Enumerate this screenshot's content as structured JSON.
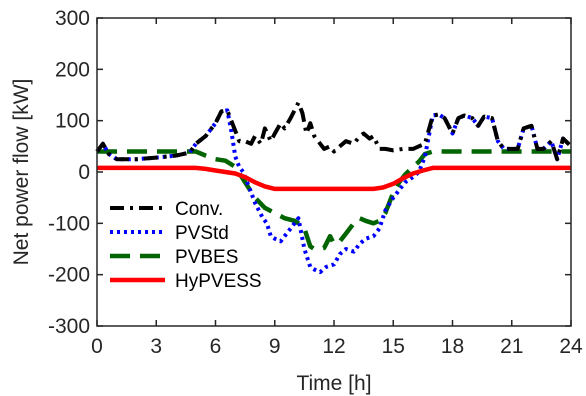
{
  "chart_data": {
    "type": "line",
    "title": "",
    "xlabel": "Time [h]",
    "ylabel": "Net power flow [kW]",
    "xlim": [
      0,
      24
    ],
    "ylim": [
      -300,
      300
    ],
    "x_ticks": [
      0,
      3,
      6,
      9,
      12,
      15,
      18,
      21,
      24
    ],
    "y_ticks": [
      -300,
      -200,
      -100,
      0,
      100,
      200,
      300
    ],
    "grid": false,
    "legend_position": "lower-left",
    "series": [
      {
        "name": "Conv.",
        "color": "#000000",
        "dash": "dash-dot",
        "x": [
          0,
          0.3,
          0.6,
          1,
          2,
          3,
          4,
          4.7,
          5,
          5.5,
          6,
          6.3,
          6.6,
          6.8,
          7,
          7.2,
          7.5,
          7.8,
          8,
          8.3,
          8.5,
          8.8,
          9,
          9.3,
          9.5,
          9.8,
          10,
          10.2,
          10.4,
          10.6,
          10.8,
          11,
          11.2,
          11.5,
          11.8,
          12,
          12.3,
          12.6,
          13,
          13.3,
          13.5,
          13.8,
          14,
          14.3,
          14.6,
          15,
          15.5,
          16,
          16.3,
          16.6,
          17,
          17.3,
          17.6,
          18,
          18.3,
          18.6,
          19,
          19.3,
          19.6,
          20,
          20.3,
          20.6,
          21,
          21.3,
          21.6,
          22,
          22.3,
          22.6,
          23,
          23.3,
          23.6,
          24
        ],
        "y": [
          40,
          55,
          35,
          25,
          25,
          28,
          32,
          38,
          55,
          70,
          95,
          118,
          120,
          100,
          80,
          60,
          60,
          55,
          70,
          55,
          85,
          60,
          75,
          95,
          85,
          105,
          120,
          135,
          115,
          75,
          95,
          70,
          60,
          45,
          50,
          40,
          50,
          60,
          55,
          70,
          75,
          65,
          70,
          45,
          45,
          42,
          45,
          45,
          50,
          55,
          110,
          112,
          105,
          75,
          105,
          110,
          105,
          90,
          108,
          105,
          60,
          45,
          45,
          45,
          85,
          90,
          45,
          45,
          60,
          25,
          65,
          50
        ]
      },
      {
        "name": "PVStd",
        "color": "#0000ff",
        "dash": "dotted",
        "x": [
          0,
          0.3,
          0.6,
          1,
          2,
          3,
          4,
          4.7,
          5,
          5.5,
          6,
          6.3,
          6.6,
          6.8,
          7,
          7.2,
          7.4,
          7.6,
          7.8,
          8,
          8.2,
          8.4,
          8.6,
          8.8,
          9,
          9.3,
          9.6,
          9.8,
          10,
          10.2,
          10.5,
          10.8,
          11,
          11.3,
          11.6,
          12,
          12.3,
          12.6,
          13,
          13.3,
          13.6,
          14,
          14.3,
          14.6,
          15,
          15.3,
          15.6,
          16,
          16.3,
          16.6,
          17,
          17.3,
          17.6,
          18,
          18.3,
          18.6,
          19,
          19.3,
          19.6,
          20,
          20.3,
          20.6,
          21,
          21.3,
          21.6,
          22,
          22.3,
          22.6,
          23,
          23.3,
          23.6,
          24
        ],
        "y": [
          40,
          55,
          35,
          25,
          25,
          28,
          32,
          38,
          55,
          70,
          95,
          118,
          120,
          80,
          30,
          10,
          0,
          -20,
          -40,
          -60,
          -75,
          -90,
          -100,
          -125,
          -130,
          -135,
          -120,
          -110,
          -100,
          -90,
          -150,
          -185,
          -190,
          -195,
          -185,
          -180,
          -160,
          -150,
          -155,
          -140,
          -130,
          -125,
          -110,
          -75,
          -50,
          -35,
          -20,
          -10,
          0,
          30,
          110,
          112,
          105,
          75,
          105,
          110,
          105,
          90,
          108,
          105,
          60,
          45,
          45,
          45,
          85,
          90,
          45,
          45,
          60,
          25,
          65,
          50
        ]
      },
      {
        "name": "PVBES",
        "color": "#006400",
        "dash": "dashed",
        "x": [
          0,
          1,
          2,
          3,
          4,
          5,
          5.5,
          6,
          6.5,
          7,
          7.5,
          8,
          8.5,
          9,
          9.5,
          10,
          10.2,
          10.5,
          10.8,
          11,
          11.2,
          11.5,
          11.8,
          12,
          12.3,
          12.6,
          13,
          13.3,
          13.6,
          14,
          14.3,
          14.6,
          15,
          15.3,
          15.6,
          16,
          16.3,
          16.6,
          17,
          18,
          19,
          20,
          21,
          22,
          23,
          24
        ],
        "y": [
          40,
          40,
          40,
          40,
          40,
          40,
          32,
          25,
          22,
          10,
          -20,
          -50,
          -70,
          -80,
          -90,
          -95,
          -100,
          -110,
          -145,
          -150,
          -150,
          -148,
          -125,
          -140,
          -135,
          -120,
          -100,
          -90,
          -95,
          -100,
          -95,
          -80,
          -40,
          -20,
          -5,
          10,
          20,
          35,
          40,
          40,
          40,
          40,
          40,
          40,
          40,
          40
        ]
      },
      {
        "name": "HyPVESS",
        "color": "#ff0000",
        "dash": "solid",
        "x": [
          0,
          1,
          2,
          3,
          4,
          5,
          5.5,
          6,
          6.5,
          7,
          7.5,
          8,
          8.5,
          9,
          10,
          11,
          12,
          13,
          14,
          14.5,
          15,
          15.5,
          16,
          16.5,
          17,
          18,
          19,
          20,
          21,
          22,
          23,
          24
        ],
        "y": [
          8,
          8,
          8,
          8,
          8,
          8,
          6,
          3,
          0,
          -3,
          -10,
          -20,
          -28,
          -33,
          -33,
          -33,
          -33,
          -33,
          -33,
          -30,
          -23,
          -12,
          -3,
          3,
          8,
          8,
          8,
          8,
          8,
          8,
          8,
          8
        ]
      }
    ]
  }
}
